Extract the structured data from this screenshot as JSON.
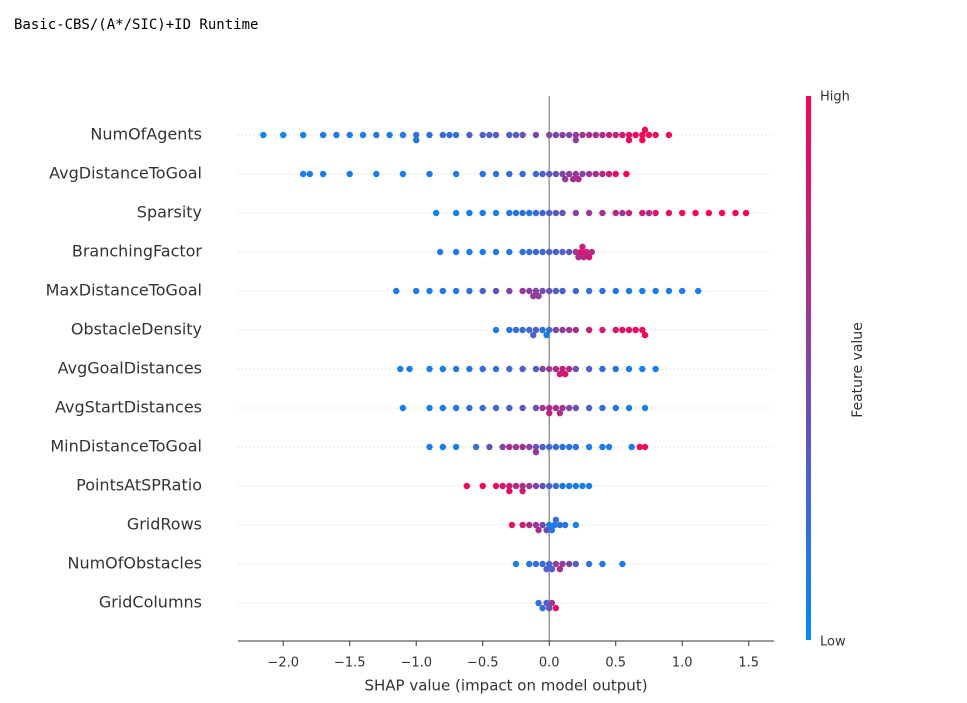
{
  "chart_data": {
    "type": "beeswarm",
    "title": "Basic-CBS/(A*/SIC)+ID Runtime",
    "xlabel": "SHAP value (impact on model output)",
    "xlim": [
      -2.34,
      1.69
    ],
    "xticks": [
      {
        "value": -2,
        "label": "−2.0"
      },
      {
        "value": -1.5,
        "label": "−1.5"
      },
      {
        "value": -1,
        "label": "−1.0"
      },
      {
        "value": -0.5,
        "label": "−0.5"
      },
      {
        "value": 0,
        "label": "0.0"
      },
      {
        "value": 0.5,
        "label": "0.5"
      },
      {
        "value": 1,
        "label": "1.0"
      },
      {
        "value": 1.5,
        "label": "1.5"
      }
    ],
    "colorbar": {
      "label": "Feature value",
      "high": "High",
      "low": "Low",
      "colors": [
        "#008bfb",
        "#ff0051"
      ]
    },
    "features": [
      {
        "name": "NumOfAgents",
        "values": [
          -2.15,
          -2.0,
          -1.85,
          -1.7,
          -1.6,
          -1.5,
          -1.4,
          -1.3,
          -1.2,
          -1.1,
          -1.0,
          -0.9,
          -0.8,
          -0.7,
          -0.6,
          -0.5,
          -0.4,
          -0.3,
          -0.2,
          -0.1,
          0,
          0.1,
          0.15,
          0.2,
          0.25,
          0.3,
          0.35,
          0.4,
          0.45,
          0.5,
          0.55,
          0.6,
          0.65,
          0.7,
          0.75,
          0.8,
          0.9,
          -1.0,
          -0.75,
          -0.45,
          -0.25,
          0.05,
          0.2,
          0.6,
          0.7,
          0.72
        ],
        "feature_values": [
          0.05,
          0.05,
          0.08,
          0.1,
          0.1,
          0.12,
          0.1,
          0.15,
          0.12,
          0.15,
          0.2,
          0.2,
          0.25,
          0.2,
          0.3,
          0.3,
          0.35,
          0.3,
          0.4,
          0.45,
          0.5,
          0.55,
          0.5,
          0.6,
          0.6,
          0.65,
          0.65,
          0.7,
          0.75,
          0.8,
          0.85,
          0.9,
          0.95,
          1,
          0.95,
          0.9,
          0.95,
          0.15,
          0.2,
          0.3,
          0.35,
          0.5,
          0.55,
          0.9,
          1,
          0.95
        ]
      },
      {
        "name": "AvgDistanceToGoal",
        "values": [
          -1.85,
          -1.8,
          -1.7,
          -1.5,
          -1.3,
          -1.1,
          -0.9,
          -0.7,
          -0.5,
          -0.4,
          -0.3,
          -0.2,
          -0.1,
          -0.05,
          0,
          0.05,
          0.1,
          0.12,
          0.15,
          0.18,
          0.2,
          0.22,
          0.25,
          0.3,
          0.35,
          0.4,
          0.45,
          0.5,
          0.58
        ],
        "feature_values": [
          0.1,
          0.1,
          0.1,
          0.1,
          0.1,
          0.1,
          0.15,
          0.15,
          0.15,
          0.2,
          0.2,
          0.2,
          0.25,
          0.3,
          0.35,
          0.4,
          0.5,
          0.6,
          0.55,
          0.65,
          0.6,
          0.7,
          0.5,
          0.6,
          0.65,
          0.7,
          0.8,
          0.9,
          1
        ]
      },
      {
        "name": "Sparsity",
        "values": [
          -0.85,
          -0.7,
          -0.6,
          -0.5,
          -0.4,
          -0.3,
          -0.25,
          -0.2,
          -0.15,
          -0.1,
          -0.05,
          0,
          0.05,
          0.1,
          0.2,
          0.3,
          0.4,
          0.5,
          0.6,
          0.7,
          0.8,
          0.9,
          1.0,
          1.1,
          1.2,
          1.3,
          1.4,
          1.48,
          0.55,
          0.75
        ],
        "feature_values": [
          0.05,
          0.05,
          0.1,
          0.1,
          0.1,
          0.15,
          0.15,
          0.2,
          0.15,
          0.2,
          0.25,
          0.3,
          0.35,
          0.4,
          0.55,
          0.6,
          0.65,
          0.7,
          0.75,
          0.8,
          0.85,
          0.9,
          0.95,
          1,
          1,
          1,
          0.95,
          1,
          0.6,
          0.7
        ]
      },
      {
        "name": "BranchingFactor",
        "values": [
          -0.82,
          -0.7,
          -0.6,
          -0.5,
          -0.4,
          -0.3,
          -0.2,
          -0.15,
          -0.1,
          -0.05,
          0,
          0.05,
          0.1,
          0.15,
          0.2,
          0.22,
          0.25,
          0.28,
          0.3,
          0.32,
          0.24,
          0.26
        ],
        "feature_values": [
          0.1,
          0.1,
          0.1,
          0.1,
          0.15,
          0.15,
          0.2,
          0.2,
          0.25,
          0.25,
          0.3,
          0.3,
          0.3,
          0.35,
          0.6,
          0.7,
          0.8,
          0.75,
          0.85,
          0.7,
          0.9,
          0.65
        ]
      },
      {
        "name": "MaxDistanceToGoal",
        "values": [
          -1.15,
          -1.0,
          -0.9,
          -0.8,
          -0.7,
          -0.6,
          -0.5,
          -0.4,
          -0.3,
          -0.2,
          -0.15,
          -0.1,
          -0.05,
          0,
          0.05,
          0.1,
          0.2,
          0.3,
          0.4,
          0.5,
          0.6,
          0.7,
          0.8,
          0.9,
          1.0,
          1.12,
          -0.12,
          -0.08
        ],
        "feature_values": [
          0.1,
          0.1,
          0.1,
          0.15,
          0.15,
          0.2,
          0.3,
          0.4,
          0.5,
          0.6,
          0.55,
          0.5,
          0.45,
          0.4,
          0.3,
          0.3,
          0.25,
          0.2,
          0.2,
          0.15,
          0.1,
          0.1,
          0.1,
          0.1,
          0.1,
          0.1,
          0.6,
          0.55
        ]
      },
      {
        "name": "ObstacleDensity",
        "values": [
          -0.4,
          -0.3,
          -0.25,
          -0.2,
          -0.15,
          -0.1,
          -0.05,
          -0.02,
          0,
          0.05,
          0.1,
          0.15,
          0.2,
          0.3,
          0.4,
          0.5,
          0.6,
          0.7,
          0.72,
          0.55,
          0.65,
          -0.12
        ],
        "feature_values": [
          0.1,
          0.15,
          0.2,
          0.2,
          0.25,
          0.3,
          0.15,
          0.1,
          0.2,
          0.5,
          0.55,
          0.6,
          0.65,
          0.75,
          0.8,
          0.85,
          0.9,
          0.95,
          1,
          0.9,
          0.95,
          0.3
        ]
      },
      {
        "name": "AvgGoalDistances",
        "values": [
          -1.12,
          -1.05,
          -0.9,
          -0.8,
          -0.7,
          -0.6,
          -0.5,
          -0.4,
          -0.3,
          -0.2,
          -0.1,
          -0.05,
          0,
          0.05,
          0.1,
          0.15,
          0.2,
          0.3,
          0.4,
          0.5,
          0.6,
          0.7,
          0.8,
          0.08,
          0.12
        ],
        "feature_values": [
          0.1,
          0.1,
          0.1,
          0.1,
          0.15,
          0.15,
          0.2,
          0.2,
          0.25,
          0.3,
          0.35,
          0.5,
          0.6,
          0.7,
          0.75,
          0.7,
          0.4,
          0.3,
          0.2,
          0.15,
          0.1,
          0.1,
          0.1,
          0.8,
          0.85
        ]
      },
      {
        "name": "AvgStartDistances",
        "values": [
          -1.1,
          -0.9,
          -0.8,
          -0.7,
          -0.6,
          -0.5,
          -0.4,
          -0.3,
          -0.2,
          -0.1,
          -0.05,
          0,
          0.05,
          0.1,
          0.15,
          0.2,
          0.3,
          0.4,
          0.5,
          0.6,
          0.72,
          0.0,
          0.08
        ],
        "feature_values": [
          0.1,
          0.1,
          0.1,
          0.15,
          0.2,
          0.2,
          0.25,
          0.3,
          0.35,
          0.4,
          0.6,
          0.7,
          0.65,
          0.6,
          0.5,
          0.4,
          0.3,
          0.2,
          0.15,
          0.1,
          0.1,
          0.75,
          0.7
        ]
      },
      {
        "name": "MinDistanceToGoal",
        "values": [
          -0.9,
          -0.8,
          -0.7,
          -0.55,
          -0.45,
          -0.35,
          -0.25,
          -0.2,
          -0.15,
          -0.1,
          -0.05,
          0,
          0.05,
          0.1,
          0.15,
          0.2,
          0.3,
          0.4,
          0.45,
          0.62,
          0.68,
          0.72,
          -0.3,
          -0.1
        ],
        "feature_values": [
          0.1,
          0.1,
          0.1,
          0.2,
          0.4,
          0.5,
          0.6,
          0.65,
          0.55,
          0.4,
          0.3,
          0.25,
          0.2,
          0.2,
          0.15,
          0.15,
          0.1,
          0.1,
          0.1,
          0.1,
          0.9,
          0.95,
          0.7,
          0.6
        ]
      },
      {
        "name": "PointsAtSPRatio",
        "values": [
          -0.62,
          -0.5,
          -0.4,
          -0.35,
          -0.3,
          -0.25,
          -0.2,
          -0.15,
          -0.1,
          -0.05,
          0,
          0.05,
          0.1,
          0.15,
          0.2,
          0.25,
          0.3,
          -0.2,
          -0.3
        ],
        "feature_values": [
          1,
          0.95,
          0.9,
          0.85,
          0.8,
          0.75,
          0.7,
          0.6,
          0.5,
          0.4,
          0.3,
          0.2,
          0.15,
          0.1,
          0.1,
          0.1,
          0.1,
          0.8,
          0.9
        ]
      },
      {
        "name": "GridRows",
        "values": [
          -0.28,
          -0.2,
          -0.15,
          -0.1,
          -0.05,
          -0.02,
          0,
          0.02,
          0.05,
          0.08,
          0.12,
          0.2,
          -0.08,
          0.04
        ],
        "feature_values": [
          0.9,
          0.8,
          0.7,
          0.6,
          0.5,
          0.4,
          0.1,
          0.15,
          0.2,
          0.2,
          0.15,
          0.1,
          0.65,
          0.1
        ]
      },
      {
        "name": "NumOfObstacles",
        "values": [
          -0.25,
          -0.15,
          -0.1,
          -0.05,
          -0.02,
          0,
          0.02,
          0.05,
          0.1,
          0.15,
          0.2,
          0.3,
          0.4,
          0.55,
          0.08
        ],
        "feature_values": [
          0.1,
          0.15,
          0.2,
          0.2,
          0.3,
          0.25,
          0.3,
          0.55,
          0.6,
          0.5,
          0.3,
          0.2,
          0.15,
          0.1,
          0.65
        ]
      },
      {
        "name": "GridColumns",
        "values": [
          -0.08,
          -0.05,
          -0.02,
          0,
          0.02,
          0.05
        ],
        "feature_values": [
          0.2,
          0.2,
          0.3,
          0.4,
          0.6,
          0.9
        ]
      }
    ]
  }
}
